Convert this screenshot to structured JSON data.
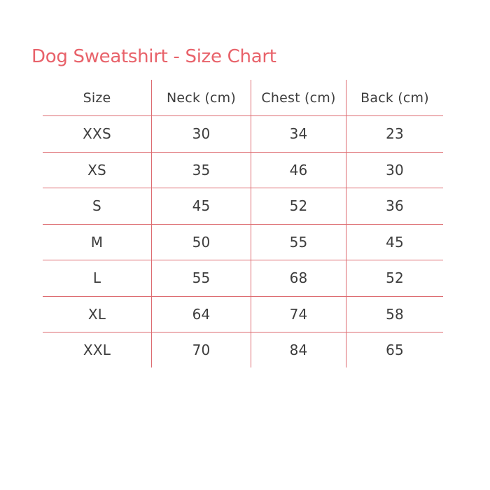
{
  "theme": {
    "background": "#ffffff",
    "accent": "#e8626a",
    "line_color": "#dd6b70",
    "text_color": "#3d3d3d"
  },
  "title": "Dog Sweatshirt - Size Chart",
  "table": {
    "headers": [
      "Size",
      "Neck (cm)",
      "Chest (cm)",
      "Back (cm)"
    ],
    "rows": [
      [
        "XXS",
        "30",
        "34",
        "23"
      ],
      [
        "XS",
        "35",
        "46",
        "30"
      ],
      [
        "S",
        "45",
        "52",
        "36"
      ],
      [
        "M",
        "50",
        "55",
        "45"
      ],
      [
        "L",
        "55",
        "68",
        "52"
      ],
      [
        "XL",
        "64",
        "74",
        "58"
      ],
      [
        "XXL",
        "70",
        "84",
        "65"
      ]
    ]
  },
  "chart_data": {
    "type": "table",
    "title": "Dog Sweatshirt - Size Chart",
    "columns": [
      "Size",
      "Neck (cm)",
      "Chest (cm)",
      "Back (cm)"
    ],
    "rows": [
      {
        "size": "XXS",
        "neck_cm": 30,
        "chest_cm": 34,
        "back_cm": 23
      },
      {
        "size": "XS",
        "neck_cm": 35,
        "chest_cm": 46,
        "back_cm": 30
      },
      {
        "size": "S",
        "neck_cm": 45,
        "chest_cm": 52,
        "back_cm": 36
      },
      {
        "size": "M",
        "neck_cm": 50,
        "chest_cm": 55,
        "back_cm": 45
      },
      {
        "size": "L",
        "neck_cm": 55,
        "chest_cm": 68,
        "back_cm": 52
      },
      {
        "size": "XL",
        "neck_cm": 64,
        "chest_cm": 74,
        "back_cm": 58
      },
      {
        "size": "XXL",
        "neck_cm": 70,
        "chest_cm": 84,
        "back_cm": 65
      }
    ]
  }
}
